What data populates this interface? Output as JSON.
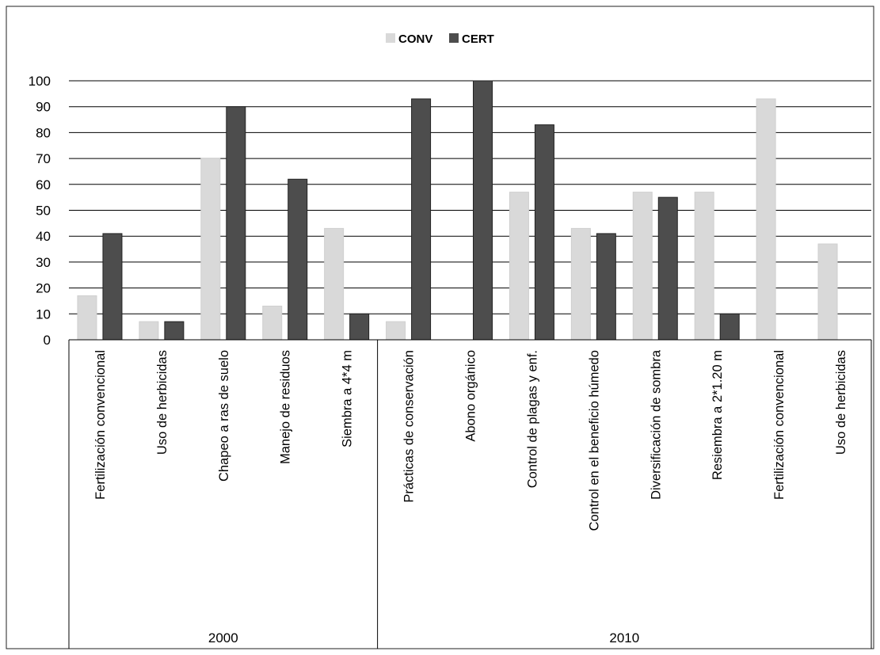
{
  "chart_data": {
    "type": "bar",
    "title": "",
    "xlabel": "",
    "ylabel": "",
    "ylim": [
      0,
      100
    ],
    "yticks": [
      0,
      10,
      20,
      30,
      40,
      50,
      60,
      70,
      80,
      90,
      100
    ],
    "grid": "horizontal",
    "legend_position": "top-center",
    "groups": [
      {
        "label": "2000",
        "count": 5
      },
      {
        "label": "2010",
        "count": 8
      }
    ],
    "categories": [
      "Fertilización convencional",
      "Uso de herbicidas",
      "Chapeo a ras de suelo",
      "Manejo de residuos",
      "Siembra a 4*4 m",
      "Prácticas de conservación",
      "Abono orgánico",
      "Control de plagas y enf.",
      "Control en el beneficio húmedo",
      "Diversificación de sombra",
      "Resiembra a 2*1.20 m",
      "Fertilización convencional",
      "Uso de herbicidas"
    ],
    "series": [
      {
        "name": "CONV",
        "color": "#d9d9d9",
        "values": [
          17,
          7,
          70,
          13,
          43,
          7,
          0,
          57,
          43,
          57,
          57,
          93,
          37
        ]
      },
      {
        "name": "CERT",
        "color": "#4d4d4d",
        "values": [
          41,
          7,
          90,
          62,
          10,
          93,
          100,
          83,
          41,
          55,
          10,
          0,
          0
        ]
      }
    ]
  }
}
